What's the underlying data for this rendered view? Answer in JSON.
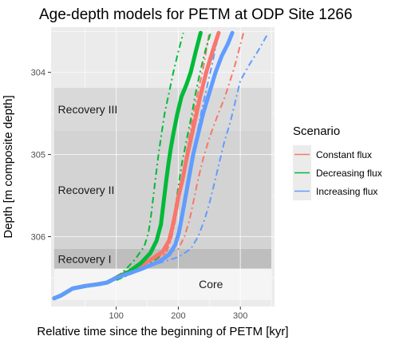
{
  "chart_data": {
    "type": "line",
    "title": "Age-depth models for PETM at ODP Site 1266",
    "xlabel": "Relative time since the beginning of PETM [kyr]",
    "ylabel": "Depth [m composite depth]",
    "xlim": [
      -5,
      355
    ],
    "ylim": [
      306.85,
      303.45
    ],
    "x_reversed": false,
    "y_reversed": true,
    "x_ticks": [
      100,
      200,
      300
    ],
    "y_ticks": [
      304,
      305,
      306
    ],
    "grid": true,
    "background": "#ebebeb",
    "phases": [
      {
        "name": "Recovery III",
        "top": 304.19,
        "bottom": 304.71,
        "fill": "#d9d9d9"
      },
      {
        "name": "Recovery II",
        "top": 304.71,
        "bottom": 306.15,
        "fill": "#d3d3d3"
      },
      {
        "name": "Recovery I",
        "top": 306.15,
        "bottom": 306.39,
        "fill": "#bebebe"
      },
      {
        "name": "Core",
        "top": 306.39,
        "bottom": 306.77,
        "fill": "#f5f5f5"
      }
    ],
    "legend": {
      "title": "Scenario",
      "position": "right"
    },
    "series": [
      {
        "name": "Constant flux",
        "color": "#f8766d",
        "mean": {
          "x": [
            0,
            10,
            30,
            50,
            70,
            85,
            100,
            120,
            140,
            160,
            175,
            185,
            190,
            195,
            200,
            207,
            212,
            217,
            222,
            228,
            235,
            245,
            255,
            265
          ],
          "y": [
            306.75,
            306.72,
            306.63,
            306.6,
            306.58,
            306.56,
            306.5,
            306.43,
            306.35,
            306.26,
            306.18,
            306.05,
            305.9,
            305.72,
            305.52,
            305.3,
            305.1,
            304.92,
            304.75,
            304.55,
            304.3,
            304.0,
            303.75,
            303.52
          ]
        },
        "lower": {
          "x": [
            100,
            120,
            145,
            165,
            180,
            188,
            194,
            200,
            205,
            210,
            216,
            222,
            230,
            240,
            250
          ],
          "y": [
            306.52,
            306.46,
            306.38,
            306.28,
            306.2,
            306.05,
            305.85,
            305.6,
            305.35,
            305.1,
            304.85,
            304.6,
            304.3,
            303.95,
            303.52
          ]
        },
        "upper": {
          "x": [
            100,
            120,
            150,
            175,
            200,
            210,
            218,
            225,
            232,
            240,
            250,
            262,
            275,
            290,
            305
          ],
          "y": [
            306.48,
            306.4,
            306.3,
            306.22,
            306.15,
            306.0,
            305.8,
            305.55,
            305.3,
            305.05,
            304.8,
            304.55,
            304.3,
            303.95,
            303.52
          ]
        }
      },
      {
        "name": "Decreasing flux",
        "color": "#00ba38",
        "mean": {
          "x": [
            0,
            10,
            30,
            50,
            70,
            85,
            100,
            120,
            140,
            155,
            165,
            172,
            176,
            180,
            184,
            188,
            192,
            198,
            205,
            213,
            220,
            228,
            236
          ],
          "y": [
            306.75,
            306.72,
            306.63,
            306.6,
            306.58,
            306.56,
            306.5,
            306.43,
            306.32,
            306.2,
            306.05,
            305.85,
            305.6,
            305.35,
            305.12,
            304.92,
            304.75,
            304.52,
            304.3,
            304.15,
            304.0,
            303.75,
            303.52
          ]
        },
        "lower": {
          "x": [
            100,
            115,
            130,
            145,
            152,
            156,
            160,
            164,
            168,
            173,
            178,
            185,
            192,
            200,
            208
          ],
          "y": [
            306.5,
            306.4,
            306.28,
            306.12,
            305.95,
            305.75,
            305.5,
            305.25,
            305.0,
            304.75,
            304.5,
            304.25,
            304.0,
            303.75,
            303.52
          ]
        },
        "upper": {
          "x": [
            100,
            125,
            150,
            168,
            180,
            188,
            194,
            200,
            206,
            214,
            222,
            228,
            235,
            243,
            252
          ],
          "y": [
            306.53,
            306.45,
            306.35,
            306.25,
            306.15,
            305.95,
            305.7,
            305.4,
            305.1,
            304.8,
            304.5,
            304.25,
            304.0,
            303.75,
            303.52
          ]
        }
      },
      {
        "name": "Increasing flux",
        "color": "#619cff",
        "mean": {
          "x": [
            0,
            10,
            30,
            50,
            70,
            85,
            100,
            120,
            145,
            170,
            185,
            195,
            201,
            206,
            212,
            218,
            224,
            232,
            240,
            250,
            260,
            270,
            280,
            287
          ],
          "y": [
            306.75,
            306.72,
            306.63,
            306.6,
            306.58,
            306.56,
            306.5,
            306.45,
            306.38,
            306.3,
            306.22,
            306.1,
            305.95,
            305.75,
            305.5,
            305.25,
            305.0,
            304.75,
            304.5,
            304.25,
            304.0,
            303.8,
            303.65,
            303.52
          ]
        },
        "lower": {
          "x": [
            100,
            130,
            160,
            180,
            192,
            200,
            205,
            210,
            216,
            222,
            230,
            238,
            247,
            256,
            265
          ],
          "y": [
            306.5,
            306.42,
            306.33,
            306.26,
            306.15,
            305.98,
            305.75,
            305.5,
            305.25,
            305.0,
            304.75,
            304.45,
            304.15,
            303.85,
            303.52
          ]
        },
        "upper": {
          "x": [
            100,
            140,
            170,
            200,
            220,
            232,
            242,
            250,
            258,
            266,
            274,
            284,
            292,
            300,
            315,
            330,
            345
          ],
          "y": [
            306.48,
            306.4,
            306.32,
            306.25,
            306.15,
            306.0,
            305.8,
            305.6,
            305.35,
            305.1,
            304.85,
            304.6,
            304.35,
            304.1,
            303.9,
            303.72,
            303.52
          ]
        }
      }
    ]
  }
}
